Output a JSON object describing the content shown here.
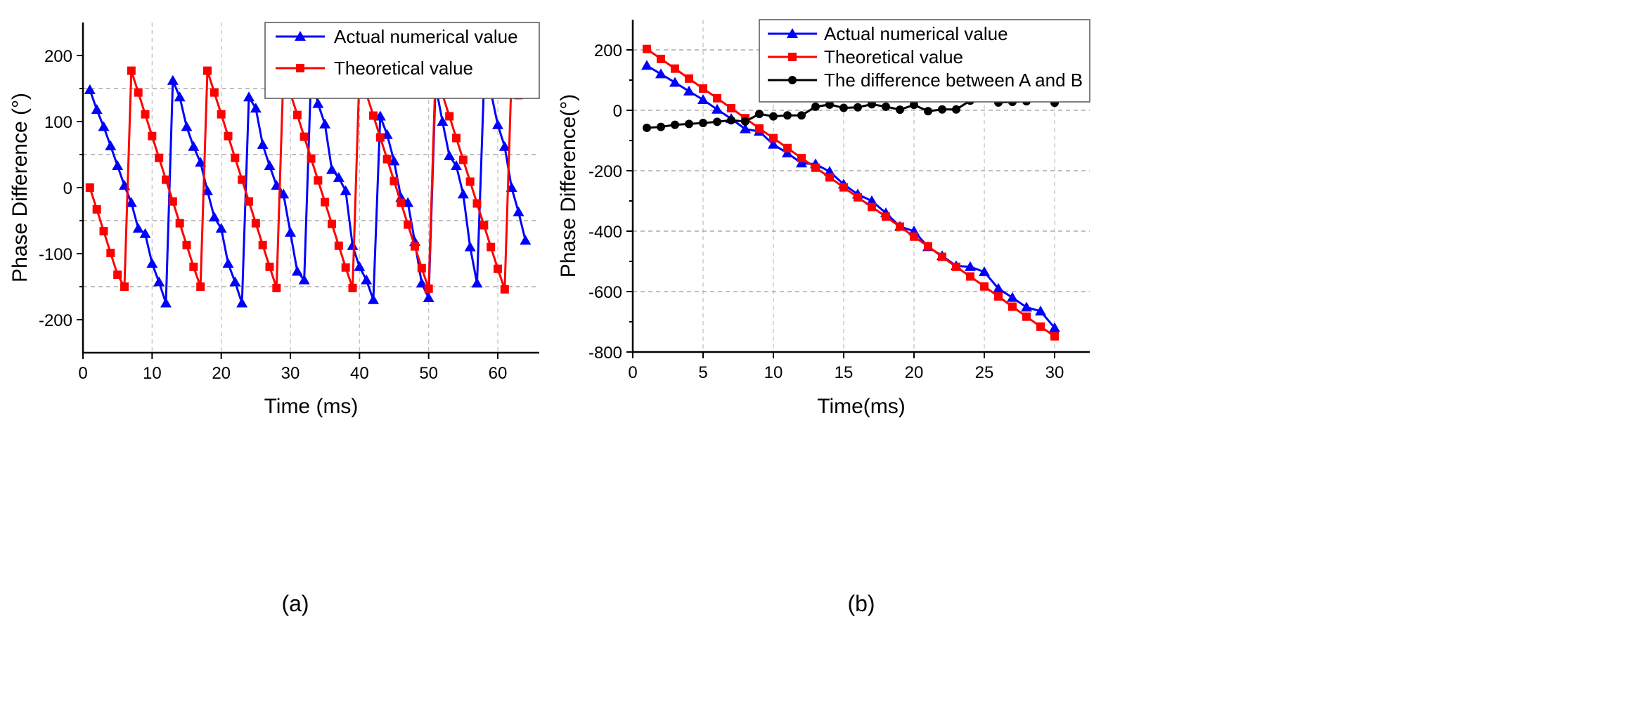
{
  "chart_data": [
    {
      "type": "line",
      "caption": "(a)",
      "xlabel": "Time (ms)",
      "ylabel": "Phase Difference (°)",
      "xlim": [
        0,
        66
      ],
      "ylim": [
        -250,
        250
      ],
      "xticks": [
        0,
        10,
        20,
        30,
        40,
        50,
        60
      ],
      "yticks": [
        -200,
        -100,
        0,
        100,
        200
      ],
      "grid": true,
      "legend_position": "top-right",
      "series": [
        {
          "name": "Actual numerical value",
          "color": "#0000ff",
          "marker": "triangle",
          "x": [
            1,
            2,
            3,
            4,
            5,
            6,
            7,
            8,
            9,
            10,
            11,
            12,
            13,
            14,
            15,
            16,
            17,
            18,
            19,
            20,
            21,
            22,
            23,
            24,
            25,
            26,
            27,
            28,
            29,
            30,
            31,
            32,
            33,
            34,
            35,
            36,
            37,
            38,
            39,
            40,
            41,
            42,
            43,
            44,
            45,
            46,
            47,
            48,
            49,
            50,
            51,
            52,
            53,
            54,
            55,
            56,
            57,
            58,
            59,
            60,
            61,
            62,
            63,
            64
          ],
          "y": [
            148,
            118,
            92,
            63,
            33,
            3,
            -23,
            -62,
            -70,
            -115,
            -143,
            -175,
            162,
            137,
            92,
            62,
            38,
            -5,
            -45,
            -62,
            -115,
            -143,
            -175,
            137,
            120,
            65,
            33,
            3,
            -10,
            -68,
            -127,
            -140,
            172,
            127,
            96,
            27,
            15,
            -5,
            -88,
            -120,
            -140,
            -170,
            108,
            80,
            40,
            -15,
            -23,
            -82,
            -145,
            -167,
            155,
            100,
            48,
            33,
            -10,
            -90,
            -145,
            155,
            145,
            95,
            62,
            0,
            -37,
            -80
          ]
        },
        {
          "name": "Theoretical value",
          "color": "#ff0000",
          "marker": "square",
          "x": [
            1,
            2,
            3,
            4,
            5,
            6,
            7,
            8,
            9,
            10,
            11,
            12,
            13,
            14,
            15,
            16,
            17,
            18,
            19,
            20,
            21,
            22,
            23,
            24,
            25,
            26,
            27,
            28,
            29,
            30,
            31,
            32,
            33,
            34,
            35,
            36,
            37,
            38,
            39,
            40,
            41,
            42,
            43,
            44,
            45,
            46,
            47,
            48,
            49,
            50,
            51,
            52,
            53,
            54,
            55,
            56,
            57,
            58,
            59,
            60,
            61,
            62,
            63
          ],
          "y": [
            0,
            -33,
            -66,
            -99,
            -132,
            -150,
            177,
            144,
            111,
            78,
            45,
            12,
            -21,
            -54,
            -87,
            -120,
            -150,
            177,
            144,
            111,
            78,
            45,
            12,
            -21,
            -54,
            -87,
            -120,
            -152,
            176,
            143,
            110,
            77,
            44,
            11,
            -22,
            -55,
            -88,
            -121,
            -152,
            175,
            142,
            109,
            76,
            43,
            10,
            -23,
            -56,
            -89,
            -122,
            -153,
            174,
            141,
            108,
            75,
            42,
            9,
            -24,
            -57,
            -90,
            -123,
            -154,
            173,
            140
          ]
        }
      ]
    },
    {
      "type": "line",
      "caption": "(b)",
      "xlabel": "Time(ms)",
      "ylabel": "Phase Difference(°)",
      "xlim": [
        0,
        32.5
      ],
      "ylim": [
        -800,
        300
      ],
      "xticks": [
        0,
        5,
        10,
        15,
        20,
        25,
        30
      ],
      "yticks": [
        -800,
        -600,
        -400,
        -200,
        0,
        200
      ],
      "grid": true,
      "legend_position": "top-right",
      "series": [
        {
          "name": "Actual numerical value",
          "color": "#0000ff",
          "marker": "triangle",
          "x": [
            1,
            2,
            3,
            4,
            5,
            6,
            7,
            8,
            9,
            10,
            11,
            12,
            13,
            14,
            15,
            16,
            17,
            18,
            19,
            20,
            21,
            22,
            23,
            24,
            25,
            26,
            27,
            28,
            29,
            30
          ],
          "y": [
            148,
            120,
            92,
            63,
            35,
            3,
            -28,
            -62,
            -70,
            -113,
            -142,
            -175,
            -178,
            -203,
            -245,
            -278,
            -300,
            -340,
            -385,
            -400,
            -452,
            -482,
            -515,
            -518,
            -535,
            -590,
            -620,
            -652,
            -665,
            -720
          ]
        },
        {
          "name": "Theoretical value",
          "color": "#ff0000",
          "marker": "square",
          "x": [
            1,
            2,
            3,
            4,
            5,
            6,
            7,
            8,
            9,
            10,
            11,
            12,
            13,
            14,
            15,
            16,
            17,
            18,
            19,
            20,
            21,
            22,
            23,
            24,
            25,
            26,
            27,
            28,
            29,
            30
          ],
          "y": [
            203,
            170,
            138,
            105,
            72,
            40,
            7,
            -26,
            -60,
            -92,
            -125,
            -158,
            -190,
            -222,
            -255,
            -288,
            -320,
            -352,
            -385,
            -418,
            -450,
            -485,
            -518,
            -550,
            -583,
            -616,
            -650,
            -683,
            -716,
            -748
          ]
        },
        {
          "name": "The difference between A and B",
          "color": "#000000",
          "marker": "circle",
          "x": [
            1,
            2,
            3,
            4,
            5,
            6,
            7,
            8,
            9,
            10,
            11,
            12,
            13,
            14,
            15,
            16,
            17,
            18,
            19,
            20,
            21,
            22,
            23,
            24,
            25,
            26,
            27,
            28,
            29,
            30
          ],
          "y": [
            -58,
            -55,
            -48,
            -45,
            -42,
            -38,
            -33,
            -37,
            -12,
            -20,
            -17,
            -17,
            12,
            19,
            8,
            10,
            20,
            12,
            2,
            18,
            -3,
            3,
            3,
            32,
            48,
            26,
            28,
            30,
            51,
            25
          ]
        }
      ]
    }
  ]
}
